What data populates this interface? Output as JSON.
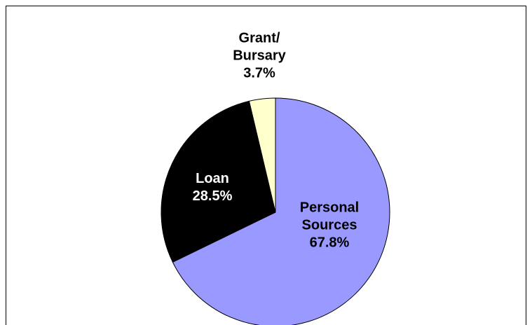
{
  "chart_data": {
    "type": "pie",
    "categories": [
      "Personal Sources",
      "Loan",
      "Grant/ Bursary"
    ],
    "values": [
      67.8,
      28.5,
      3.7
    ],
    "value_labels": [
      "67.8%",
      "28.5%",
      "3.7%"
    ],
    "colors": [
      "#9999ff",
      "#000000",
      "#ffffcc"
    ]
  }
}
